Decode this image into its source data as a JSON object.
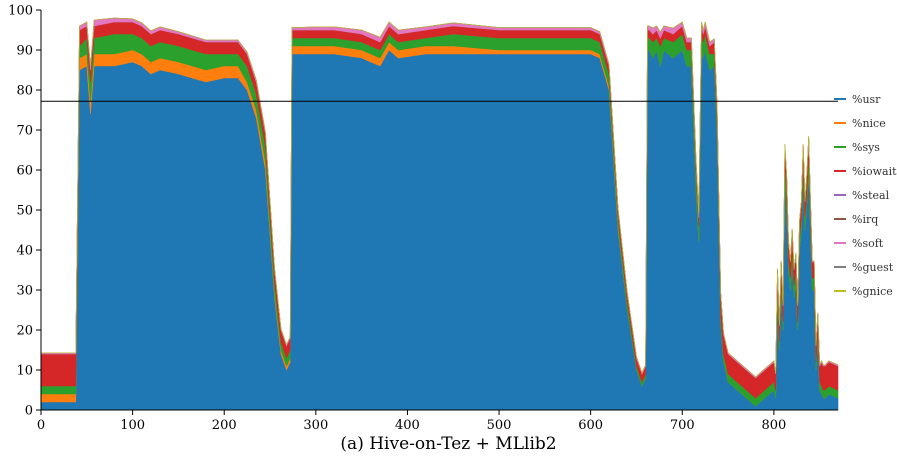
{
  "caption": "(a) Hive-on-Tez + MLlib2",
  "chart_data": {
    "type": "area",
    "stacked": true,
    "title": "",
    "xlabel": "",
    "ylabel": "",
    "xlim": [
      0,
      870
    ],
    "ylim": [
      0,
      100
    ],
    "x_ticks": [
      0,
      100,
      200,
      300,
      400,
      500,
      600,
      700,
      800
    ],
    "y_ticks": [
      0,
      10,
      20,
      30,
      40,
      50,
      60,
      70,
      80,
      90,
      100
    ],
    "reference_line": {
      "y": 77.2,
      "color": "#000000"
    },
    "legend": {
      "placement": "right"
    },
    "x": [
      0,
      38,
      42,
      50,
      54,
      58,
      80,
      100,
      110,
      120,
      130,
      150,
      180,
      200,
      215,
      225,
      235,
      245,
      255,
      262,
      268,
      272,
      274,
      280,
      300,
      320,
      350,
      370,
      380,
      390,
      420,
      450,
      500,
      550,
      600,
      610,
      620,
      630,
      640,
      650,
      656,
      660,
      662,
      664,
      668,
      672,
      676,
      680,
      690,
      700,
      705,
      710,
      715,
      718,
      721,
      723,
      725,
      730,
      735,
      738,
      740,
      742,
      745,
      750,
      760,
      770,
      780,
      790,
      800,
      802,
      804,
      806,
      808,
      810,
      812,
      814,
      816,
      818,
      820,
      822,
      824,
      826,
      828,
      830,
      832,
      834,
      836,
      838,
      840,
      842,
      844,
      846,
      848,
      850,
      852,
      854,
      856,
      860,
      870
    ],
    "series": [
      {
        "name": "%usr",
        "color": "#1f77b4",
        "values": [
          2,
          2,
          85,
          86,
          74,
          86,
          86,
          87,
          86,
          84,
          85,
          84,
          82,
          83,
          83,
          80,
          73,
          60,
          28,
          14,
          10,
          12,
          89,
          89,
          89,
          89,
          88,
          86,
          90,
          88,
          89,
          89,
          89,
          89,
          89,
          88,
          80,
          45,
          25,
          10,
          6,
          8,
          90,
          90,
          88,
          90,
          86,
          90,
          88,
          90,
          86,
          86,
          55,
          42,
          90,
          88,
          90,
          85,
          86,
          70,
          45,
          22,
          12,
          7,
          5,
          3,
          1,
          3,
          5,
          3,
          28,
          15,
          30,
          20,
          58,
          50,
          35,
          30,
          38,
          28,
          32,
          20,
          40,
          45,
          58,
          45,
          52,
          60,
          45,
          30,
          30,
          10,
          18,
          5,
          4,
          3,
          3,
          4,
          3
        ]
      },
      {
        "name": "%nice",
        "color": "#ff7f0e",
        "values": [
          2,
          2,
          3,
          3,
          3,
          3,
          3,
          3,
          3,
          3,
          3,
          3,
          3,
          3,
          3,
          2,
          2,
          2,
          1,
          1,
          1,
          1,
          2,
          2,
          2,
          2,
          2,
          2,
          2,
          2,
          2,
          2,
          1,
          1,
          1,
          1,
          1,
          1,
          0,
          0,
          0,
          0,
          0,
          0,
          0,
          0,
          0,
          0,
          0,
          0,
          0,
          0,
          0,
          0,
          0,
          0,
          0,
          0,
          0,
          0,
          0,
          0,
          0,
          0,
          0,
          0,
          0,
          0,
          0,
          0,
          0,
          0,
          0,
          0,
          0,
          0,
          0,
          0,
          0,
          0,
          0,
          0,
          0,
          0,
          0,
          0,
          0,
          0,
          0,
          0,
          0,
          0,
          0,
          0,
          0,
          0,
          0,
          0,
          0
        ]
      },
      {
        "name": "%sys",
        "color": "#2ca02c",
        "values": [
          2,
          2,
          3,
          4,
          5,
          4,
          5,
          4,
          4,
          4,
          4,
          4,
          4,
          3,
          3,
          4,
          4,
          4,
          3,
          2,
          2,
          2,
          2,
          2,
          2,
          2,
          2,
          2,
          2,
          2,
          2,
          3,
          3,
          3,
          3,
          3,
          3,
          2,
          2,
          1,
          1,
          1,
          3,
          3,
          4,
          3,
          5,
          3,
          4,
          4,
          4,
          4,
          5,
          4,
          4,
          4,
          4,
          4,
          3,
          3,
          3,
          2,
          2,
          2,
          2,
          2,
          2,
          2,
          2,
          2,
          3,
          2,
          3,
          2,
          4,
          4,
          3,
          3,
          3,
          3,
          3,
          2,
          3,
          3,
          4,
          3,
          3,
          4,
          3,
          3,
          3,
          2,
          2,
          2,
          2,
          2,
          2,
          2,
          2
        ]
      },
      {
        "name": "%iowait",
        "color": "#d62728",
        "values": [
          8,
          8,
          4,
          3,
          3,
          3,
          3,
          3,
          3,
          3,
          3,
          3,
          3,
          3,
          3,
          3,
          3,
          3,
          3,
          3,
          3,
          3,
          2,
          2,
          2,
          2,
          2,
          2,
          2,
          2,
          2,
          2,
          2,
          2,
          2,
          2,
          2,
          2,
          2,
          2,
          2,
          2,
          2,
          2,
          2,
          2,
          2,
          2,
          2,
          2,
          2,
          2,
          2,
          2,
          2,
          2,
          2,
          2,
          3,
          3,
          4,
          5,
          5,
          5,
          5,
          5,
          5,
          5,
          5,
          4,
          4,
          4,
          4,
          4,
          4,
          4,
          4,
          4,
          4,
          4,
          4,
          4,
          4,
          4,
          4,
          4,
          4,
          4,
          4,
          4,
          4,
          4,
          4,
          4,
          6,
          6,
          6,
          6,
          6
        ]
      },
      {
        "name": "%steal",
        "color": "#9467bd",
        "values": [
          0,
          0,
          0,
          0,
          0,
          0,
          0,
          0,
          0,
          0,
          0,
          0,
          0,
          0,
          0,
          0,
          0,
          0,
          0,
          0,
          0,
          0,
          0,
          0,
          0,
          0,
          0,
          0,
          0,
          0,
          0,
          0,
          0,
          0,
          0,
          0,
          0,
          0,
          0,
          0,
          0,
          0,
          0,
          0,
          0,
          0,
          0,
          0,
          0,
          0,
          0,
          0,
          0,
          0,
          0,
          0,
          0,
          0,
          0,
          0,
          0,
          0,
          0,
          0,
          0,
          0,
          0,
          0,
          0,
          0,
          0,
          0,
          0,
          0,
          0,
          0,
          0,
          0,
          0,
          0,
          0,
          0,
          0,
          0,
          0,
          0,
          0,
          0,
          0,
          0,
          0,
          0,
          0,
          0,
          0,
          0,
          0,
          0,
          0
        ]
      },
      {
        "name": "%irq",
        "color": "#8c564b",
        "values": [
          0,
          0,
          0,
          0,
          0,
          0,
          0,
          0,
          0,
          0,
          0,
          0,
          0,
          0,
          0,
          0,
          0,
          0,
          0,
          0,
          0,
          0,
          0,
          0,
          0,
          0,
          0,
          0,
          0,
          0,
          0,
          0,
          0,
          0,
          0,
          0,
          0,
          0,
          0,
          0,
          0,
          0,
          0,
          0,
          0,
          0,
          0,
          0,
          0,
          0,
          0,
          0,
          0,
          0,
          0,
          0,
          0,
          0,
          0,
          0,
          0,
          0,
          0,
          0,
          0,
          0,
          0,
          0,
          0,
          0,
          0,
          0,
          0,
          0,
          0,
          0,
          0,
          0,
          0,
          0,
          0,
          0,
          0,
          0,
          0,
          0,
          0,
          0,
          0,
          0,
          0,
          0,
          0,
          0,
          0,
          0,
          0,
          0,
          0
        ]
      },
      {
        "name": "%soft",
        "color": "#e377c2",
        "values": [
          0.3,
          0.3,
          1,
          1,
          1,
          1.5,
          1,
          0.8,
          0.8,
          0.8,
          0.8,
          0.6,
          0.5,
          0.5,
          0.5,
          0.5,
          0.5,
          0.5,
          0.3,
          0.3,
          0.3,
          0.3,
          0.6,
          0.6,
          0.8,
          0.8,
          1,
          1.2,
          1,
          1,
          0.8,
          0.8,
          0.6,
          0.6,
          0.6,
          0.6,
          0.5,
          0.3,
          0.3,
          0.3,
          0.3,
          0.3,
          1,
          1,
          1.5,
          1,
          1.5,
          1,
          1.5,
          1,
          1,
          1,
          1,
          1,
          1,
          1,
          1,
          1,
          0.8,
          0.5,
          0.5,
          0.3,
          0.3,
          0.3,
          0.3,
          0.3,
          0.3,
          0.3,
          0.3,
          0.3,
          0.3,
          0.3,
          0.3,
          0.3,
          0.5,
          0.5,
          0.3,
          0.3,
          0.3,
          0.3,
          0.3,
          0.3,
          0.3,
          0.3,
          0.5,
          0.3,
          0.3,
          0.5,
          0.3,
          0.3,
          0.3,
          0.3,
          0.3,
          0.3,
          0.3,
          0.3,
          0.3,
          0.3,
          0.3
        ]
      },
      {
        "name": "%guest",
        "color": "#7f7f7f",
        "values": [
          0,
          0,
          0,
          0,
          0,
          0,
          0,
          0,
          0,
          0,
          0,
          0,
          0,
          0,
          0,
          0,
          0,
          0,
          0,
          0,
          0,
          0,
          0,
          0,
          0,
          0,
          0,
          0,
          0,
          0,
          0,
          0,
          0,
          0,
          0,
          0,
          0,
          0,
          0,
          0,
          0,
          0,
          0,
          0,
          0,
          0,
          0,
          0,
          0,
          0,
          0,
          0,
          0,
          0,
          0,
          0,
          0,
          0,
          0,
          0,
          0,
          0,
          0,
          0,
          0,
          0,
          0,
          0,
          0,
          0,
          0,
          0,
          0,
          0,
          0,
          0,
          0,
          0,
          0,
          0,
          0,
          0,
          0,
          0,
          0,
          0,
          0,
          0,
          0,
          0,
          0,
          0,
          0,
          0,
          0,
          0,
          0,
          0,
          0
        ]
      },
      {
        "name": "%gnice",
        "color": "#bcbd22",
        "values": [
          0,
          0,
          0,
          0,
          0,
          0,
          0,
          0,
          0,
          0,
          0,
          0,
          0,
          0,
          0,
          0,
          0,
          0,
          0,
          0,
          0,
          0,
          0,
          0,
          0,
          0,
          0,
          0,
          0,
          0,
          0,
          0,
          0,
          0,
          0,
          0,
          0,
          0,
          0,
          0,
          0,
          0,
          0,
          0,
          0,
          0,
          0,
          0,
          0,
          0,
          0,
          0,
          0,
          0,
          0,
          0,
          0,
          0,
          0,
          0,
          0,
          0,
          0,
          0,
          0,
          0,
          0,
          0,
          0,
          0,
          0,
          0,
          0,
          0,
          0,
          0,
          0,
          0,
          0,
          0,
          0,
          0,
          0,
          0,
          0,
          0,
          0,
          0,
          0,
          0,
          0,
          0,
          0,
          0,
          0,
          0,
          0,
          0,
          0
        ]
      }
    ]
  }
}
